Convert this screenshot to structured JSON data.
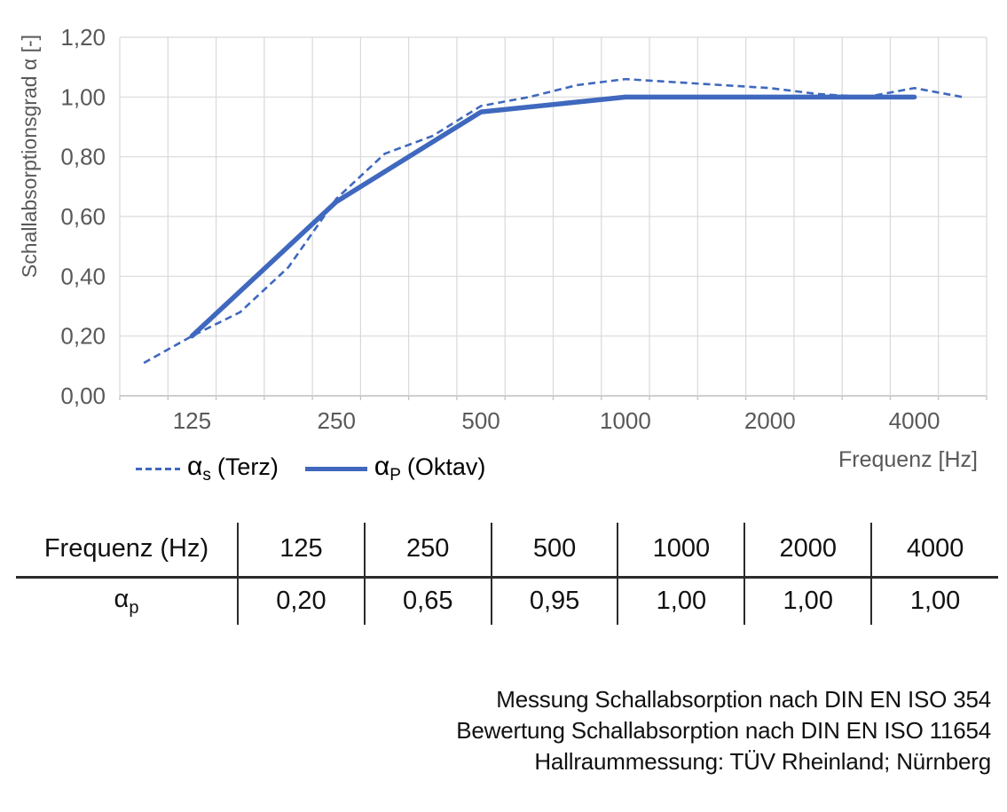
{
  "colors": {
    "line_blue": "#3F68BE",
    "grid": "#D9D9D9",
    "grid_dark": "#BFBFBF",
    "axis_text": "#595959",
    "text": "#111111",
    "table_line": "#2B2B2B"
  },
  "chart_data": {
    "type": "line",
    "title": "",
    "ylabel": "Schallabsorptionsgrad α [-]",
    "xlabel": "Frequenz [Hz]",
    "ylim": [
      0,
      1.2
    ],
    "ytick_step": 0.2,
    "ytick_labels": [
      "0,00",
      "0,20",
      "0,40",
      "0,60",
      "0,80",
      "1,00",
      "1,20"
    ],
    "grid": true,
    "legend_position": "bottom-left",
    "categories": [
      100,
      125,
      160,
      200,
      250,
      315,
      400,
      500,
      630,
      800,
      1000,
      1250,
      1600,
      2000,
      2500,
      3150,
      4000,
      5000
    ],
    "xtick_labeled": [
      125,
      250,
      500,
      1000,
      2000,
      4000
    ],
    "series": [
      {
        "name": "αs (Terz)",
        "style": "dashed",
        "values": [
          0.11,
          0.2,
          0.28,
          0.43,
          0.66,
          0.81,
          0.87,
          0.97,
          1.0,
          1.04,
          1.06,
          1.05,
          1.04,
          1.03,
          1.01,
          1.0,
          1.03,
          1.0
        ]
      },
      {
        "name": "αP (Oktav)",
        "style": "solid",
        "x": [
          125,
          250,
          500,
          1000,
          2000,
          4000
        ],
        "values": [
          0.2,
          0.65,
          0.95,
          1.0,
          1.0,
          1.0
        ]
      }
    ]
  },
  "legend": {
    "items": [
      {
        "alpha": "α",
        "sub": "s",
        "rest": "(Terz)"
      },
      {
        "alpha": "α",
        "sub": "P",
        "rest": "(Oktav)"
      }
    ]
  },
  "table": {
    "header": "Frequenz (Hz)",
    "row_label": {
      "alpha": "α",
      "sub": "p"
    },
    "frequencies": [
      "125",
      "250",
      "500",
      "1000",
      "2000",
      "4000"
    ],
    "values": [
      "0,20",
      "0,65",
      "0,95",
      "1,00",
      "1,00",
      "1,00"
    ]
  },
  "footer": {
    "lines": [
      "Messung Schallabsorption nach DIN EN ISO 354",
      "Bewertung Schallabsorption nach DIN EN ISO 11654",
      "Hallraummessung: TÜV Rheinland; Nürnberg"
    ]
  }
}
